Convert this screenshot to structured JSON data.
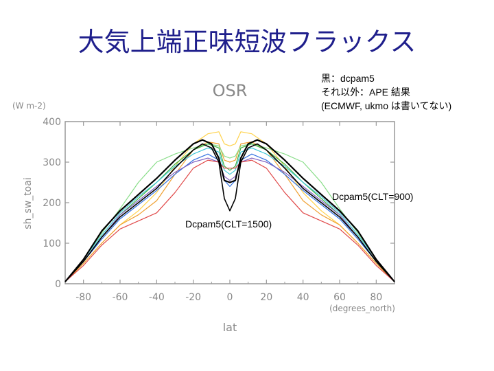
{
  "slide": {
    "title": "大気上端正味短波フラックス"
  },
  "legend_note": {
    "line1": "黒：dcpam5",
    "line2": "それ以外：APE 結果",
    "line3": "(ECMWF, ukmo は書いてない)"
  },
  "callouts": {
    "clt900": "Dcpam5(CLT=900)",
    "clt1500": "Dcpam5(CLT=1500)"
  },
  "chart_data": {
    "type": "line",
    "title": "OSR",
    "units": "(W m-2)",
    "ylabel": "sh_sw_toai",
    "xlabel": "lat",
    "xunits": "(degrees_north)",
    "xlim": [
      -90,
      90
    ],
    "ylim": [
      0,
      400
    ],
    "xticks": [
      -80,
      -60,
      -40,
      -20,
      0,
      20,
      40,
      60,
      80
    ],
    "yticks": [
      0,
      100,
      200,
      300,
      400
    ],
    "grid": false,
    "series": [
      {
        "color": "#000000",
        "width": 2.2,
        "x": [
          -90,
          -80,
          -70,
          -60,
          -50,
          -40,
          -30,
          -20,
          -15,
          -10,
          -6,
          -3,
          0,
          3,
          6,
          10,
          15,
          20,
          30,
          40,
          50,
          60,
          70,
          80,
          90
        ],
        "y": [
          5,
          60,
          130,
          180,
          220,
          260,
          305,
          345,
          355,
          345,
          310,
          255,
          250,
          255,
          310,
          345,
          355,
          345,
          305,
          260,
          220,
          180,
          130,
          60,
          5
        ]
      },
      {
        "color": "#000000",
        "width": 1.6,
        "x": [
          -90,
          -80,
          -70,
          -60,
          -50,
          -40,
          -30,
          -20,
          -15,
          -10,
          -6,
          -3,
          0,
          3,
          6,
          10,
          15,
          20,
          30,
          40,
          50,
          60,
          70,
          80,
          90
        ],
        "y": [
          5,
          55,
          115,
          165,
          200,
          235,
          285,
          330,
          345,
          335,
          300,
          210,
          180,
          210,
          300,
          335,
          345,
          330,
          285,
          235,
          200,
          165,
          115,
          55,
          5
        ]
      },
      {
        "color": "#ffd24a",
        "width": 1.2,
        "x": [
          -90,
          -80,
          -70,
          -60,
          -50,
          -40,
          -30,
          -20,
          -12,
          -6,
          -3,
          0,
          3,
          6,
          12,
          20,
          30,
          40,
          50,
          60,
          70,
          80,
          90
        ],
        "y": [
          5,
          50,
          100,
          145,
          180,
          225,
          290,
          345,
          370,
          375,
          345,
          340,
          345,
          375,
          370,
          345,
          290,
          225,
          180,
          145,
          100,
          50,
          5
        ]
      },
      {
        "color": "#f0a030",
        "width": 1.2,
        "x": [
          -90,
          -80,
          -70,
          -60,
          -50,
          -40,
          -30,
          -20,
          -12,
          -6,
          -3,
          0,
          3,
          6,
          12,
          20,
          30,
          40,
          50,
          60,
          70,
          80,
          90
        ],
        "y": [
          5,
          50,
          100,
          145,
          170,
          205,
          270,
          330,
          350,
          345,
          305,
          300,
          305,
          345,
          350,
          330,
          270,
          205,
          170,
          145,
          100,
          50,
          5
        ]
      },
      {
        "color": "#88dd88",
        "width": 1.2,
        "x": [
          -90,
          -80,
          -70,
          -60,
          -50,
          -40,
          -30,
          -20,
          -12,
          -6,
          -3,
          0,
          3,
          6,
          12,
          20,
          30,
          40,
          50,
          60,
          70,
          80,
          90
        ],
        "y": [
          5,
          60,
          125,
          185,
          250,
          300,
          320,
          335,
          345,
          340,
          315,
          310,
          315,
          340,
          345,
          335,
          320,
          300,
          250,
          185,
          125,
          60,
          5
        ]
      },
      {
        "color": "#40b040",
        "width": 1.2,
        "x": [
          -90,
          -80,
          -70,
          -60,
          -50,
          -40,
          -30,
          -20,
          -12,
          -6,
          -3,
          0,
          3,
          6,
          12,
          20,
          30,
          40,
          50,
          60,
          70,
          80,
          90
        ],
        "y": [
          5,
          55,
          115,
          170,
          210,
          250,
          295,
          330,
          345,
          335,
          290,
          280,
          290,
          335,
          345,
          330,
          295,
          250,
          210,
          170,
          115,
          55,
          5
        ]
      },
      {
        "color": "#40c8d8",
        "width": 1.2,
        "x": [
          -90,
          -80,
          -70,
          -60,
          -50,
          -40,
          -30,
          -20,
          -12,
          -6,
          -3,
          0,
          3,
          6,
          12,
          20,
          30,
          40,
          50,
          60,
          70,
          80,
          90
        ],
        "y": [
          5,
          60,
          120,
          175,
          215,
          250,
          290,
          320,
          335,
          325,
          280,
          270,
          280,
          325,
          335,
          320,
          290,
          250,
          215,
          175,
          120,
          60,
          5
        ]
      },
      {
        "color": "#3070e0",
        "width": 1.2,
        "x": [
          -90,
          -80,
          -70,
          -60,
          -50,
          -40,
          -30,
          -20,
          -12,
          -6,
          -3,
          0,
          3,
          6,
          12,
          20,
          30,
          40,
          50,
          60,
          70,
          80,
          90
        ],
        "y": [
          5,
          55,
          110,
          160,
          195,
          230,
          270,
          305,
          320,
          305,
          255,
          240,
          255,
          305,
          320,
          305,
          270,
          230,
          195,
          160,
          110,
          55,
          5
        ]
      },
      {
        "color": "#8060c0",
        "width": 1.2,
        "x": [
          -90,
          -80,
          -70,
          -60,
          -50,
          -40,
          -30,
          -20,
          -12,
          -6,
          -3,
          0,
          3,
          6,
          12,
          20,
          30,
          40,
          50,
          60,
          70,
          80,
          90
        ],
        "y": [
          5,
          55,
          115,
          170,
          205,
          240,
          275,
          300,
          310,
          300,
          265,
          255,
          265,
          300,
          310,
          300,
          275,
          240,
          205,
          170,
          115,
          55,
          5
        ]
      },
      {
        "color": "#e04848",
        "width": 1.2,
        "x": [
          -90,
          -80,
          -70,
          -60,
          -50,
          -40,
          -30,
          -20,
          -12,
          -6,
          -3,
          0,
          3,
          6,
          12,
          20,
          30,
          40,
          50,
          60,
          70,
          80,
          90
        ],
        "y": [
          5,
          45,
          95,
          135,
          155,
          175,
          225,
          285,
          305,
          300,
          285,
          285,
          285,
          300,
          305,
          285,
          225,
          175,
          155,
          135,
          95,
          45,
          5
        ]
      }
    ]
  }
}
